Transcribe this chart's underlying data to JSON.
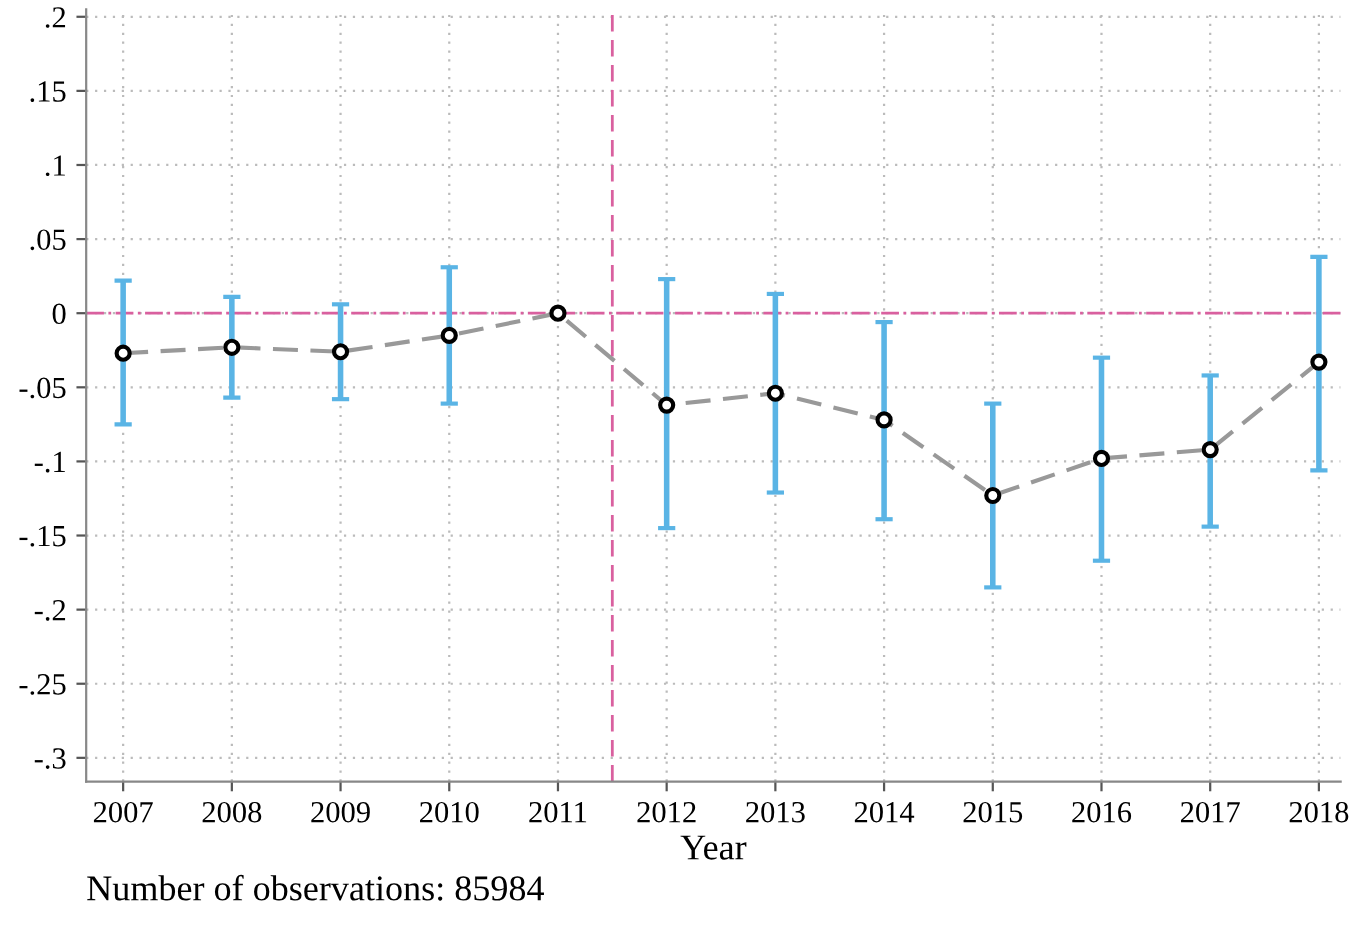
{
  "chart_data": {
    "type": "line",
    "xlabel": "Year",
    "x": [
      2007,
      2008,
      2009,
      2010,
      2011,
      2012,
      2013,
      2014,
      2015,
      2016,
      2017,
      2018
    ],
    "series": [
      {
        "color": "#999999",
        "values": [
          -0.027,
          -0.023,
          -0.026,
          -0.015,
          0,
          -0.062,
          -0.054,
          -0.072,
          -0.123,
          -0.098,
          -0.092,
          -0.033
        ],
        "errors": [
          [
            -0.075,
            0.022
          ],
          [
            -0.057,
            0.011
          ],
          [
            -0.058,
            0.006
          ],
          [
            -0.061,
            0.031
          ],
          null,
          [
            -0.145,
            0.023
          ],
          [
            -0.121,
            0.013
          ],
          [
            -0.139,
            -0.006
          ],
          [
            -0.185,
            -0.061
          ],
          [
            -0.167,
            -0.03
          ],
          [
            -0.144,
            -0.042
          ],
          [
            -0.106,
            0.038
          ]
        ]
      }
    ],
    "marker": "circle",
    "line_style": "dashed",
    "grid": true,
    "xlim": [
      2006.66,
      2018.2
    ],
    "xticks": [
      2007,
      2008,
      2009,
      2010,
      2011,
      2012,
      2013,
      2014,
      2015,
      2016,
      2017,
      2018
    ],
    "ylim": [
      -0.316,
      0.205
    ],
    "yticks": [
      {
        "value": 0.2,
        "label": ".2"
      },
      {
        "value": 0.15,
        "label": ".15"
      },
      {
        "value": 0.1,
        "label": ".1"
      },
      {
        "value": 0.05,
        "label": ".05"
      },
      0,
      {
        "value": -0.05,
        "label": "-.05"
      },
      {
        "value": -0.1,
        "label": "-.1"
      },
      {
        "value": -0.15,
        "label": "-.15"
      },
      {
        "value": -0.2,
        "label": "-.2"
      },
      {
        "value": -0.25,
        "label": "-.25"
      },
      {
        "value": -0.3,
        "label": "-.3"
      }
    ],
    "ref_lines": [
      {
        "axis": "y",
        "value": 0,
        "color": "#d9609f",
        "line_style": "dashdot"
      },
      {
        "axis": "x",
        "value": 2011.5,
        "color": "#d9609f",
        "line_style": "dashed"
      }
    ],
    "annotations": [
      "Number of observations: 85984"
    ]
  }
}
